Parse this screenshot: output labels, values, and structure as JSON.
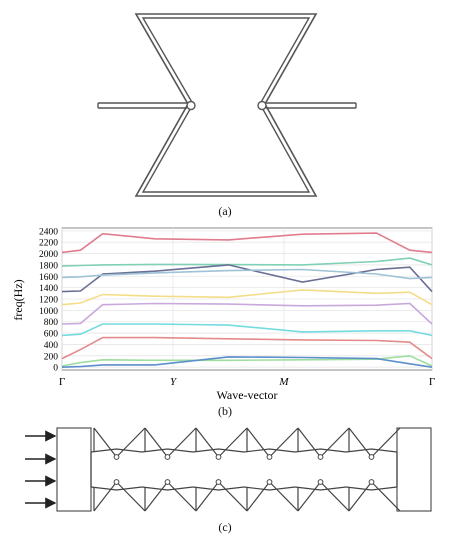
{
  "panel_a": {
    "caption": "(a)"
  },
  "panel_b": {
    "caption": "(b)",
    "chart_data": {
      "type": "line",
      "title": "",
      "xlabel": "Wave-vector",
      "ylabel": "freq(Hz)",
      "x_ticks": [
        "Γ",
        "Y",
        "M",
        "Γ"
      ],
      "x": [
        0,
        0.05,
        0.11,
        0.25,
        0.45,
        0.65,
        0.85,
        0.94,
        1.0
      ],
      "ylim": [
        -50,
        2450
      ],
      "yticks": [
        0,
        200,
        400,
        600,
        800,
        1000,
        1200,
        1400,
        1600,
        1800,
        2000,
        2200,
        2400
      ],
      "grid": true,
      "series": [
        {
          "color": "#e07c8e",
          "values": [
            2020,
            2060,
            2350,
            2260,
            2240,
            2340,
            2360,
            2060,
            2020
          ]
        },
        {
          "color": "#7fd0b4",
          "values": [
            1780,
            1790,
            1800,
            1810,
            1805,
            1800,
            1860,
            1920,
            1800
          ]
        },
        {
          "color": "#6a6f96",
          "values": [
            1330,
            1340,
            1640,
            1690,
            1800,
            1500,
            1720,
            1760,
            1330
          ]
        },
        {
          "color": "#9ec2d6",
          "values": [
            1580,
            1590,
            1620,
            1660,
            1700,
            1720,
            1640,
            1560,
            1580
          ]
        },
        {
          "color": "#f3dd87",
          "values": [
            1100,
            1130,
            1280,
            1250,
            1230,
            1360,
            1300,
            1320,
            1100
          ]
        },
        {
          "color": "#c9a8dc",
          "values": [
            760,
            770,
            1100,
            1120,
            1110,
            1080,
            1090,
            1120,
            760
          ]
        },
        {
          "color": "#74dbe1",
          "values": [
            560,
            580,
            760,
            760,
            740,
            620,
            640,
            640,
            560
          ]
        },
        {
          "color": "#e58a8a",
          "values": [
            150,
            310,
            520,
            520,
            500,
            480,
            470,
            440,
            150
          ]
        },
        {
          "color": "#9ede9e",
          "values": [
            20,
            80,
            130,
            120,
            120,
            130,
            140,
            200,
            20
          ]
        },
        {
          "color": "#5b8fcc",
          "values": [
            0,
            10,
            40,
            40,
            180,
            170,
            150,
            60,
            0
          ]
        }
      ]
    }
  },
  "panel_c": {
    "caption": "(c)"
  }
}
